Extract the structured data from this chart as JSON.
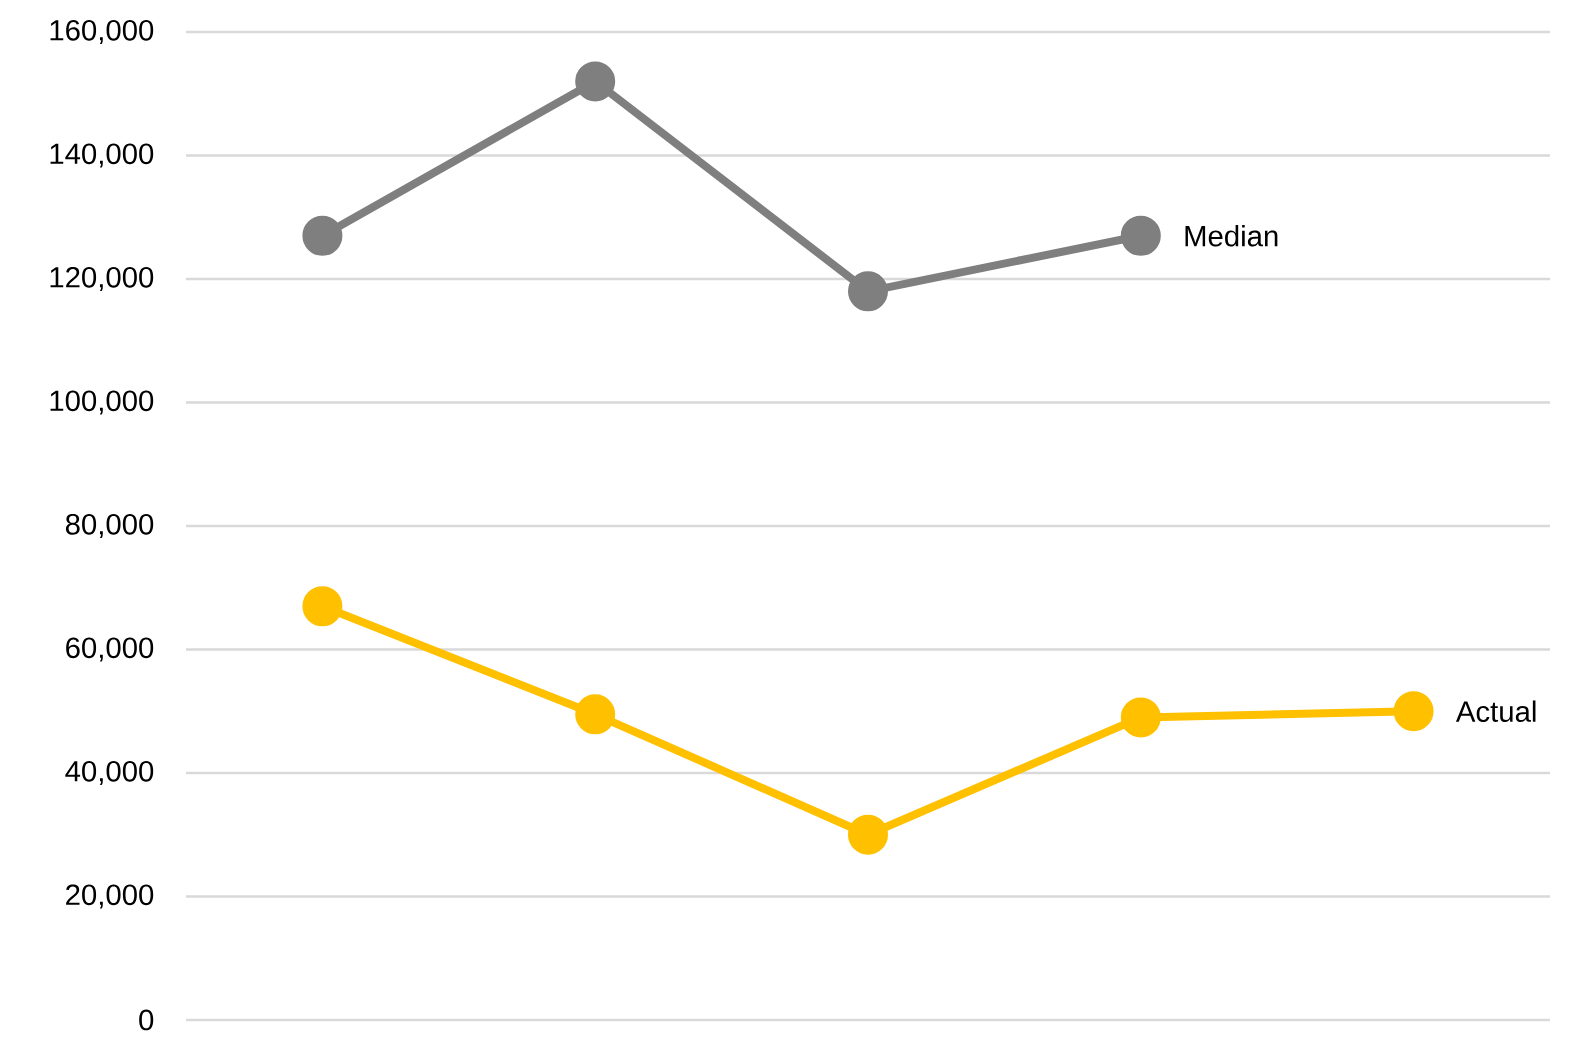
{
  "chart_data": {
    "type": "line",
    "categories": [
      null,
      null,
      null,
      null,
      null
    ],
    "series": [
      {
        "name": "Median",
        "color": "#7f7f7f",
        "values": [
          127000,
          152000,
          118000,
          127000,
          null
        ]
      },
      {
        "name": "Actual",
        "color": "#ffc000",
        "values": [
          67000,
          49500,
          30000,
          49000,
          50000
        ]
      }
    ],
    "ylim": [
      0,
      160000
    ],
    "yticks": [
      0,
      {
        "value": 20000,
        "label": "20,000"
      },
      {
        "value": 40000,
        "label": "40,000"
      },
      {
        "value": 60000,
        "label": "60,000"
      },
      {
        "value": 80000,
        "label": "80,000"
      },
      {
        "value": 100000,
        "label": "100,000"
      },
      {
        "value": 120000,
        "label": "120,000"
      },
      {
        "value": 140000,
        "label": "140,000"
      },
      {
        "value": 160000,
        "label": "160,000"
      }
    ],
    "grid": "y",
    "tick_labels": "y",
    "marker": "circle"
  }
}
